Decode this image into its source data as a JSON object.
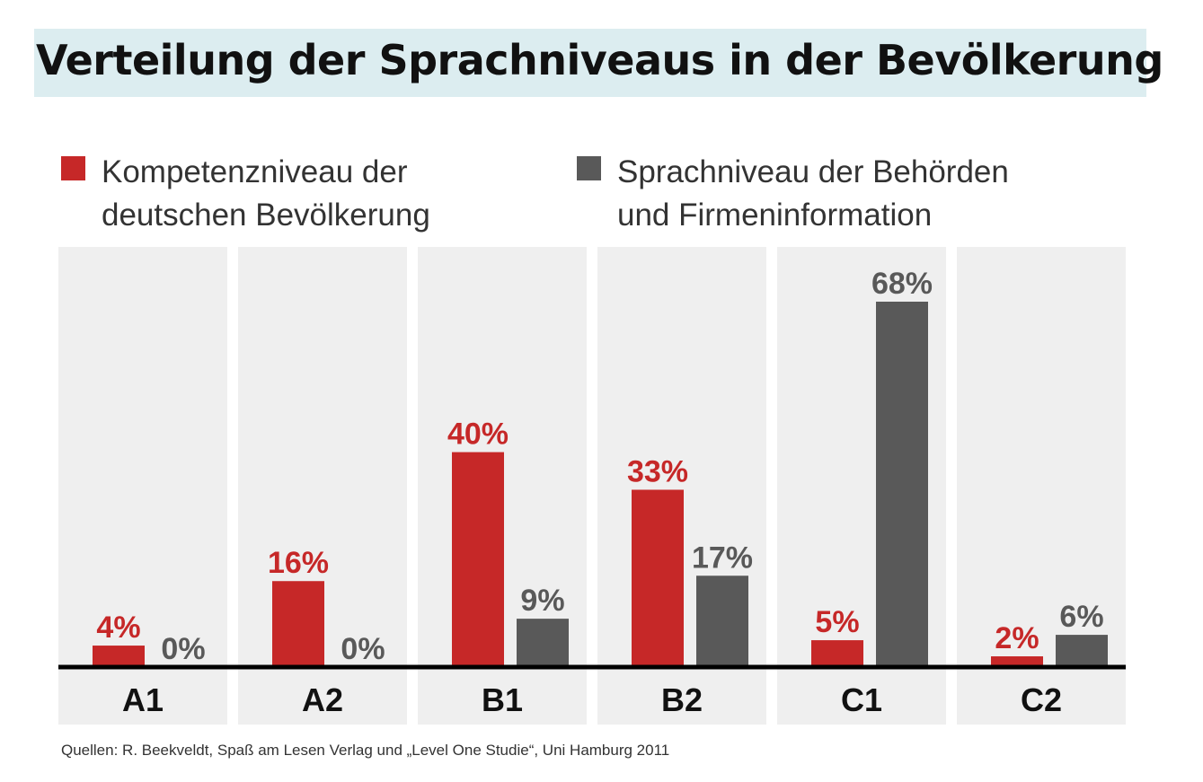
{
  "title": "Verteilung der Sprachniveaus in der Bevölkerung",
  "colors": {
    "red": "#c62828",
    "gray": "#595959",
    "panel": "#efefef",
    "title_band": "#dcedf0"
  },
  "legend": [
    {
      "lines": [
        "Kompetenzniveau der",
        "deutschen Bevölkerung"
      ],
      "color": "#c62828"
    },
    {
      "lines": [
        "Sprachniveau der Behörden",
        "und Firmeninformation"
      ],
      "color": "#595959"
    }
  ],
  "source": "Quellen: R. Beekveldt, Spaß am Lesen Verlag und „Level One Studie“, Uni Hamburg 2011",
  "chart_data": {
    "type": "bar",
    "title": "Verteilung der Sprachniveaus in der Bevölkerung",
    "categories": [
      "A1",
      "A2",
      "B1",
      "B2",
      "C1",
      "C2"
    ],
    "series": [
      {
        "name": "Kompetenzniveau der deutschen Bevölkerung",
        "color": "#c62828",
        "values": [
          4,
          16,
          40,
          33,
          5,
          2
        ],
        "labels": [
          "4%",
          "16%",
          "40%",
          "33%",
          "5%",
          "2%"
        ]
      },
      {
        "name": "Sprachniveau der Behörden und Firmeninformation",
        "color": "#595959",
        "values": [
          0,
          0,
          9,
          17,
          68,
          6
        ],
        "labels": [
          "0%",
          "0%",
          "9%",
          "17%",
          "68%",
          "6%"
        ]
      }
    ],
    "ylim": [
      0,
      70
    ],
    "xlabel": "",
    "ylabel": ""
  }
}
